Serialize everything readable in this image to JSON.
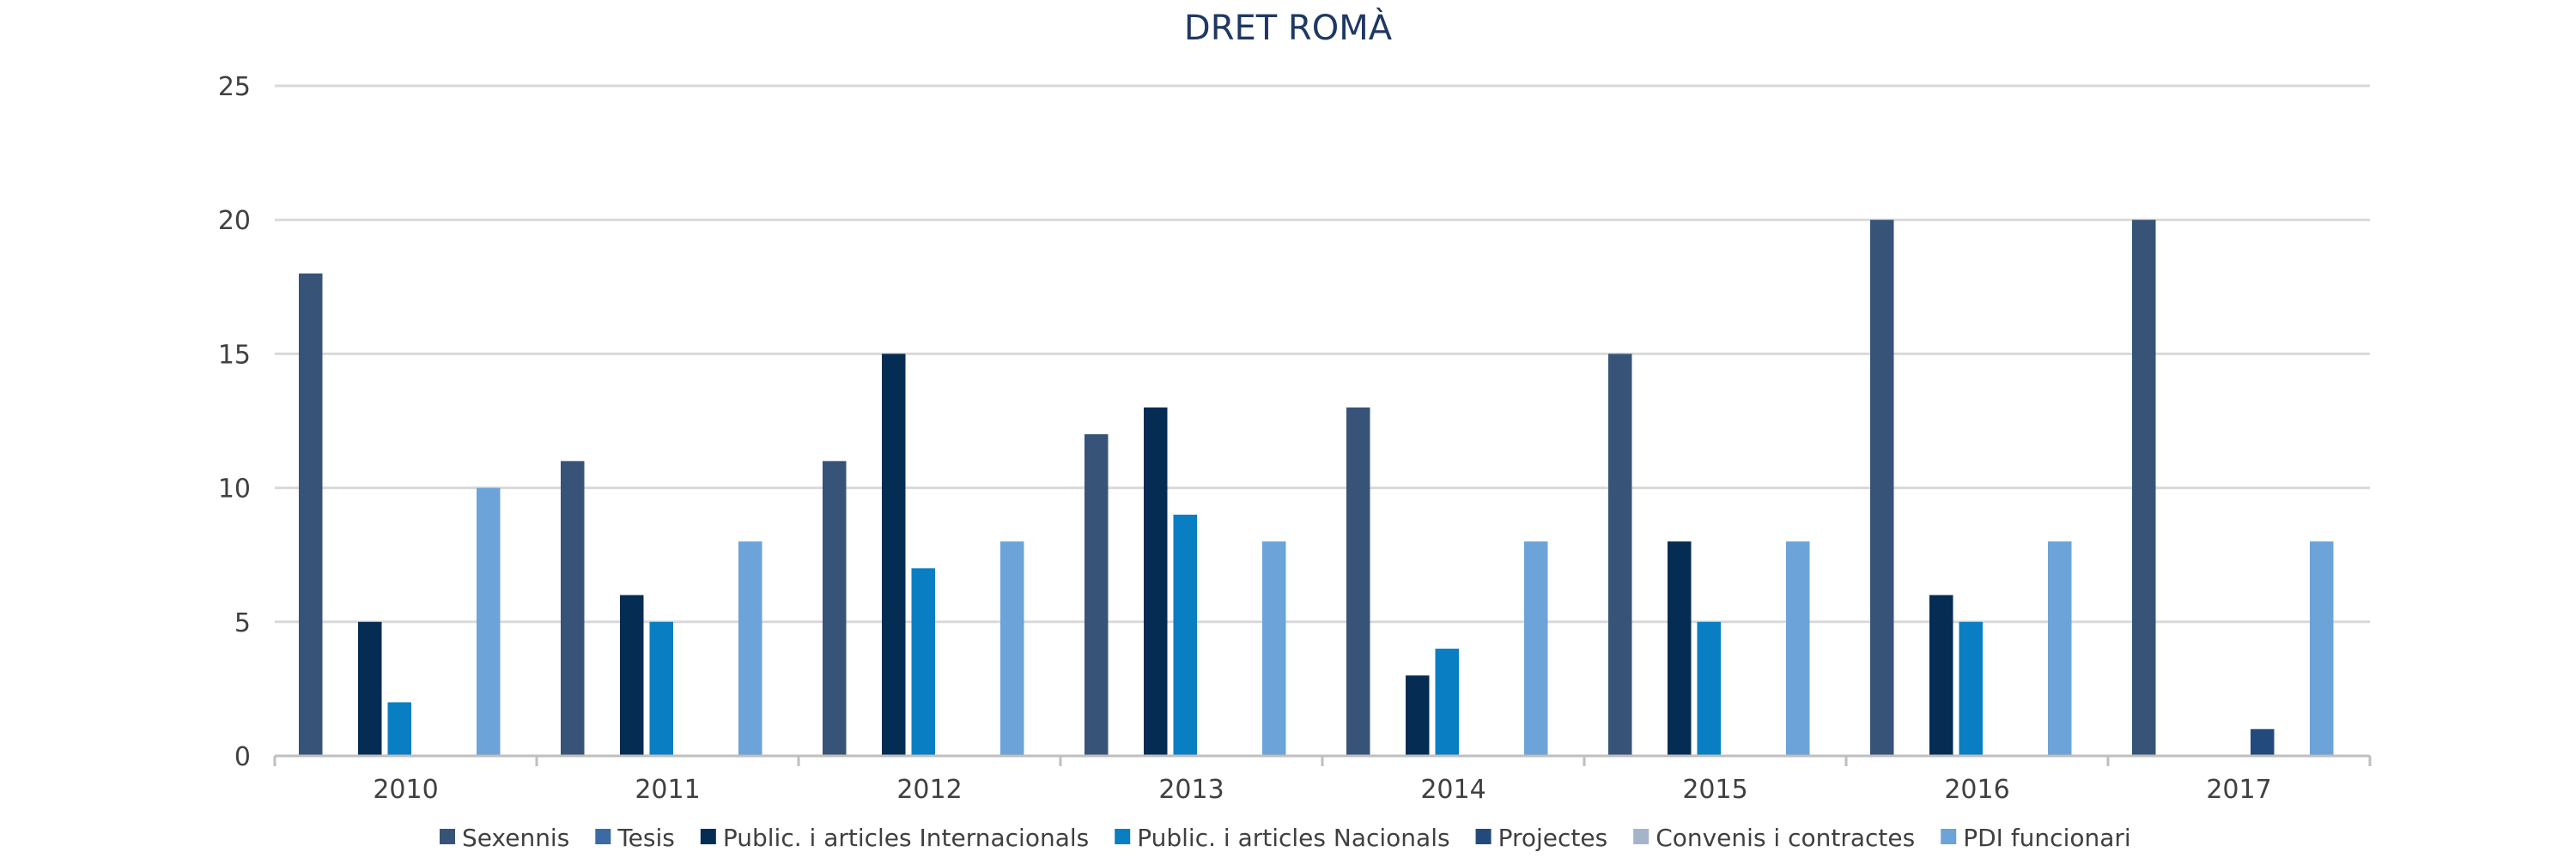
{
  "chart_data": {
    "type": "bar",
    "title": "DRET ROMÀ",
    "xlabel": "",
    "ylabel": "",
    "categories": [
      "2010",
      "2011",
      "2012",
      "2013",
      "2014",
      "2015",
      "2016",
      "2017"
    ],
    "ylim": [
      0,
      25
    ],
    "yticks": [
      0,
      5,
      10,
      15,
      20,
      25
    ],
    "grid": true,
    "legend_position": "bottom",
    "series": [
      {
        "name": "Sexennis",
        "color": "#375478",
        "values": [
          18,
          11,
          11,
          12,
          13,
          15,
          20,
          20
        ]
      },
      {
        "name": "Tesis",
        "color": "#3b6ba5",
        "values": [
          0,
          0,
          0,
          0,
          0,
          0,
          0,
          0
        ]
      },
      {
        "name": "Public. i articles Internacionals",
        "color": "#052d54",
        "values": [
          5,
          6,
          15,
          13,
          3,
          8,
          6,
          0
        ]
      },
      {
        "name": "Public. i articles Nacionals",
        "color": "#0a7ec2",
        "values": [
          2,
          5,
          7,
          9,
          4,
          5,
          5,
          0
        ]
      },
      {
        "name": "Projectes",
        "color": "#234a7c",
        "values": [
          0,
          0,
          0,
          0,
          0,
          0,
          0,
          1
        ]
      },
      {
        "name": "Convenis i contractes",
        "color": "#a5b5c9",
        "values": [
          0,
          0,
          0,
          0,
          0,
          0,
          0,
          0
        ]
      },
      {
        "name": "PDI funcionari",
        "color": "#6ca3d8",
        "values": [
          10,
          8,
          8,
          8,
          8,
          8,
          8,
          8
        ]
      }
    ]
  }
}
